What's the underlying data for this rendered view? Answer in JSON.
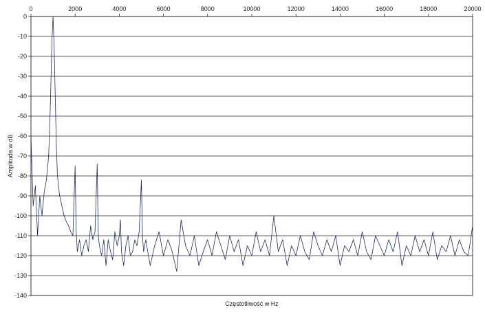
{
  "chart_data": {
    "type": "line",
    "title": "",
    "xlabel": "Częstotliwość w Hz",
    "ylabel": "Amplituda w dB",
    "xlim": [
      0,
      20000
    ],
    "ylim": [
      -140,
      0
    ],
    "x_ticks": [
      0,
      2000,
      4000,
      6000,
      8000,
      10000,
      12000,
      14000,
      16000,
      18000,
      20000
    ],
    "y_ticks": [
      0,
      -10,
      -20,
      -30,
      -40,
      -50,
      -60,
      -70,
      -80,
      -90,
      -100,
      -110,
      -120,
      -130,
      -140
    ],
    "grid": "horizontal",
    "legend": "none",
    "line_color": "#1f2a5c",
    "series": [
      {
        "x": [
          0,
          100,
          200,
          300,
          400,
          500,
          600,
          700,
          800,
          850,
          900,
          950,
          1000,
          1050,
          1100,
          1150,
          1200,
          1300,
          1400,
          1500,
          1600,
          1700,
          1800,
          1900,
          2000,
          2050,
          2100,
          2200,
          2300,
          2400,
          2500,
          2600,
          2700,
          2800,
          2900,
          3000,
          3050,
          3100,
          3200,
          3300,
          3400,
          3500,
          3600,
          3700,
          3800,
          3900,
          4000,
          4050,
          4100,
          4200,
          4300,
          4400,
          4500,
          4600,
          4700,
          4800,
          4900,
          5000,
          5050,
          5100,
          5200,
          5400,
          5600,
          5800,
          6000,
          6200,
          6400,
          6600,
          6800,
          7000,
          7200,
          7400,
          7600,
          7800,
          8000,
          8200,
          8400,
          8600,
          8800,
          9000,
          9200,
          9400,
          9600,
          9800,
          10000,
          10200,
          10400,
          10600,
          10800,
          11000,
          11200,
          11400,
          11600,
          11800,
          12000,
          12200,
          12400,
          12600,
          12800,
          13000,
          13200,
          13400,
          13600,
          13800,
          14000,
          14200,
          14400,
          14600,
          14800,
          15000,
          15200,
          15400,
          15600,
          15800,
          16000,
          16200,
          16400,
          16600,
          16800,
          17000,
          17200,
          17400,
          17600,
          17800,
          18000,
          18200,
          18400,
          18600,
          18800,
          19000,
          19200,
          19400,
          19600,
          19800,
          20000
        ],
        "values": [
          -60,
          -95,
          -85,
          -110,
          -90,
          -100,
          -88,
          -82,
          -70,
          -55,
          -35,
          -12,
          0,
          -15,
          -40,
          -65,
          -80,
          -90,
          -95,
          -100,
          -103,
          -105,
          -108,
          -110,
          -75,
          -108,
          -118,
          -112,
          -120,
          -115,
          -112,
          -118,
          -105,
          -112,
          -108,
          -74,
          -110,
          -115,
          -120,
          -112,
          -125,
          -112,
          -118,
          -122,
          -108,
          -115,
          -110,
          -102,
          -118,
          -125,
          -115,
          -110,
          -120,
          -118,
          -112,
          -115,
          -108,
          -82,
          -110,
          -118,
          -112,
          -125,
          -115,
          -108,
          -120,
          -112,
          -118,
          -128,
          -102,
          -115,
          -120,
          -110,
          -125,
          -118,
          -112,
          -120,
          -108,
          -115,
          -122,
          -110,
          -118,
          -112,
          -125,
          -115,
          -120,
          -108,
          -118,
          -112,
          -120,
          -100,
          -118,
          -112,
          -125,
          -115,
          -120,
          -110,
          -118,
          -122,
          -108,
          -115,
          -120,
          -112,
          -118,
          -110,
          -125,
          -115,
          -118,
          -112,
          -120,
          -108,
          -118,
          -122,
          -110,
          -115,
          -120,
          -112,
          -118,
          -108,
          -125,
          -115,
          -120,
          -110,
          -118,
          -112,
          -120,
          -108,
          -122,
          -115,
          -118,
          -110,
          -120,
          -112,
          -118,
          -120,
          -105
        ]
      }
    ]
  }
}
